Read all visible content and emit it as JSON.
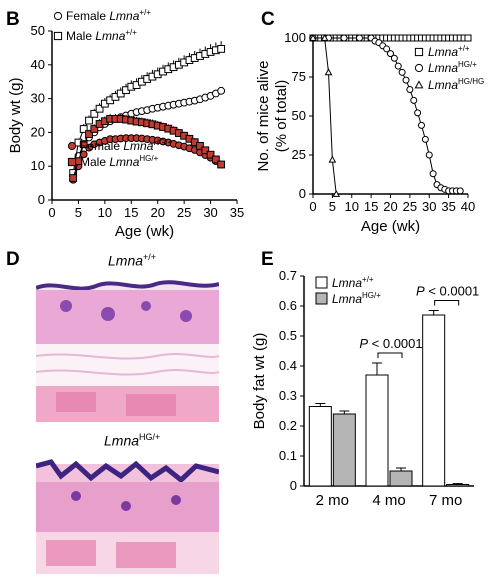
{
  "panels": {
    "B": {
      "label": "B"
    },
    "C": {
      "label": "C"
    },
    "D": {
      "label": "D",
      "top_title": "Lmna",
      "top_sup": "+/+",
      "bottom_title": "Lmna",
      "bottom_sup": "HG/+"
    },
    "E": {
      "label": "E"
    }
  },
  "chart_data": [
    {
      "panel": "B",
      "type": "line",
      "ylabel": "Body wt (g)",
      "xlabel": "Age (wk)",
      "xlim": [
        0,
        35
      ],
      "ylim": [
        0,
        50
      ],
      "xticks": [
        0,
        5,
        10,
        15,
        20,
        25,
        30,
        35
      ],
      "yticks": [
        0,
        10,
        20,
        30,
        40,
        50
      ],
      "legend": [
        {
          "text": "Female ",
          "italic": "Lmna",
          "sup": "+/+"
        },
        {
          "text": "Male ",
          "italic": "Lmna",
          "sup": "+/+"
        },
        {
          "text": "Female ",
          "italic": "Lmna",
          "sup": "HG/+"
        },
        {
          "text": "Male ",
          "italic": "Lmna",
          "sup": "HG/+"
        }
      ],
      "series": [
        {
          "name": "Female Lmna+/+",
          "marker": "circle-open",
          "x": [
            4,
            5,
            6,
            7,
            8,
            9,
            10,
            11,
            12,
            13,
            14,
            15,
            16,
            17,
            18,
            19,
            20,
            21,
            22,
            23,
            24,
            25,
            26,
            27,
            28,
            29,
            30,
            31,
            32
          ],
          "y": [
            7,
            13,
            16.5,
            18.5,
            20,
            21.5,
            22.5,
            23.3,
            24,
            24.5,
            25,
            25.5,
            26,
            26.3,
            26.6,
            27,
            27.3,
            27.6,
            27.9,
            28.2,
            28.5,
            28.8,
            29.1,
            29.4,
            29.8,
            30.3,
            30.8,
            31.5,
            32.3
          ]
        },
        {
          "name": "Male Lmna+/+",
          "marker": "square-open",
          "x": [
            4,
            5,
            6,
            7,
            8,
            9,
            10,
            11,
            12,
            13,
            14,
            15,
            16,
            17,
            18,
            19,
            20,
            21,
            22,
            23,
            24,
            25,
            26,
            27,
            28,
            29,
            30,
            31,
            32
          ],
          "y": [
            8,
            17,
            21,
            23.5,
            25.5,
            27,
            28.5,
            29.5,
            30.5,
            31.5,
            32.5,
            33.5,
            34,
            35,
            35.8,
            36.5,
            37.2,
            38,
            38.7,
            39.3,
            40,
            40.7,
            41.4,
            42,
            42.6,
            43.2,
            43.8,
            44.3,
            44.7
          ],
          "err": [
            0.5,
            1.2,
            1.5,
            1.5,
            1.5,
            1.6,
            1.7,
            1.7,
            1.8,
            1.8,
            1.9,
            1.9,
            2,
            2,
            2,
            2,
            2,
            2,
            2,
            2,
            2.1,
            2.1,
            2.1,
            2.1,
            2.2,
            2.2,
            2.3,
            2.3,
            2.3
          ]
        },
        {
          "name": "Female LmnaHG/+",
          "marker": "circle-filled",
          "x": [
            4,
            5,
            6,
            7,
            8,
            9,
            10,
            11,
            12,
            13,
            14,
            15,
            16,
            17,
            18,
            19,
            20,
            21,
            22,
            23,
            24,
            25,
            26,
            27,
            28,
            29,
            30,
            31,
            32
          ],
          "y": [
            6,
            10,
            13.5,
            15.5,
            16.5,
            17,
            17.5,
            18,
            18,
            18.2,
            18.3,
            18.3,
            18.3,
            18.2,
            18,
            17.8,
            17.6,
            17.3,
            17,
            16.6,
            16.2,
            15.8,
            15.3,
            14.8,
            14.1,
            13.3,
            12.5,
            11.5,
            10.5
          ]
        },
        {
          "name": "Male LmnaHG/+",
          "marker": "square-filled",
          "x": [
            4,
            5,
            6,
            7,
            8,
            9,
            10,
            11,
            12,
            13,
            14,
            15,
            16,
            17,
            18,
            19,
            20,
            21,
            22,
            23,
            24,
            25,
            26,
            27,
            28,
            29,
            30,
            31,
            32
          ],
          "y": [
            6.5,
            11.5,
            16.5,
            19.5,
            21,
            22.5,
            23.3,
            24,
            24,
            24,
            23.8,
            23.5,
            23.2,
            23,
            22.7,
            22.4,
            22,
            21.6,
            21.1,
            20.5,
            19.8,
            19,
            18.1,
            17.1,
            16,
            14.7,
            13.4,
            12,
            10.5
          ],
          "err": [
            0.5,
            1,
            1.2,
            1.3,
            1.4,
            1.4,
            1.4,
            1.4,
            1.4,
            1.4,
            1.4,
            1.4,
            1.4,
            1.4,
            1.4,
            1.4,
            1.4,
            1.3,
            1.3,
            1.3,
            1.3,
            1.2,
            1.2,
            1.2,
            1.1,
            1.1,
            1,
            1,
            0.9
          ]
        }
      ]
    },
    {
      "panel": "C",
      "type": "line",
      "ylabel": "No. of mice alive",
      "ylabel2": "(% of total)",
      "xlabel": "Age (wk)",
      "xlim": [
        0,
        40
      ],
      "ylim": [
        0,
        100
      ],
      "xticks": [
        0,
        5,
        10,
        15,
        20,
        25,
        30,
        35,
        40
      ],
      "yticks": [
        0,
        25,
        50,
        75,
        100
      ],
      "legend": [
        {
          "italic": "Lmna",
          "sup": "+/+"
        },
        {
          "italic": "Lmna",
          "sup": "HG/+"
        },
        {
          "italic": "Lmna",
          "sup": "HG/HG"
        }
      ],
      "series": [
        {
          "name": "Lmna+/+",
          "marker": "square-open",
          "x": [
            0,
            1,
            2,
            3,
            4,
            5,
            6,
            7,
            8,
            9,
            10,
            11,
            12,
            13,
            14,
            15,
            16,
            17,
            18,
            19,
            20,
            21,
            22,
            23,
            24,
            25,
            26,
            27,
            28,
            29,
            30,
            31,
            32,
            33,
            34,
            35,
            36,
            37,
            38,
            39,
            40
          ],
          "y": [
            100,
            100,
            100,
            100,
            100,
            100,
            100,
            100,
            100,
            100,
            100,
            100,
            100,
            100,
            100,
            100,
            100,
            100,
            100,
            100,
            100,
            100,
            100,
            100,
            100,
            100,
            100,
            100,
            100,
            100,
            100,
            100,
            100,
            100,
            100,
            100,
            100,
            100,
            100,
            100,
            100
          ]
        },
        {
          "name": "LmnaHG/+",
          "marker": "circle-open",
          "x": [
            0,
            4,
            8,
            12,
            15,
            16,
            17,
            18,
            19,
            20,
            21,
            22,
            23,
            24,
            25,
            26,
            27,
            28,
            29,
            30,
            31,
            32,
            33,
            34,
            35,
            36,
            37,
            38
          ],
          "y": [
            100,
            100,
            100,
            100,
            100,
            98,
            97,
            95,
            93,
            90,
            87,
            82,
            78,
            73,
            67,
            60,
            52,
            44,
            35,
            25,
            13,
            6,
            4,
            3,
            2,
            2,
            2,
            2
          ]
        },
        {
          "name": "LmnaHG/HG",
          "marker": "triangle-open",
          "x": [
            0,
            3,
            4,
            5,
            6
          ],
          "y": [
            100,
            100,
            78,
            22,
            0
          ]
        }
      ]
    },
    {
      "panel": "E",
      "type": "bar",
      "ylabel": "Body fat wt (g)",
      "categories": [
        "2 mo",
        "4 mo",
        "7 mo"
      ],
      "ylim": [
        0,
        0.7
      ],
      "yticks": [
        0,
        0.1,
        0.2,
        0.3,
        0.4,
        0.5,
        0.6,
        0.7
      ],
      "legend": [
        {
          "italic": "Lmna",
          "sup": "+/+"
        },
        {
          "italic": "Lmna",
          "sup": "HG/+"
        }
      ],
      "series": [
        {
          "name": "Lmna+/+",
          "color": "#ffffff",
          "values": [
            0.265,
            0.37,
            0.57
          ],
          "err": [
            0.01,
            0.04,
            0.015
          ]
        },
        {
          "name": "LmnaHG/+",
          "color": "#b5b5b5",
          "values": [
            0.24,
            0.05,
            0.005
          ],
          "err": [
            0.01,
            0.01,
            0.003
          ]
        }
      ],
      "annotations": [
        {
          "text": "P < 0.0001",
          "category": 1
        },
        {
          "text": "P < 0.0001",
          "category": 2
        }
      ]
    }
  ]
}
